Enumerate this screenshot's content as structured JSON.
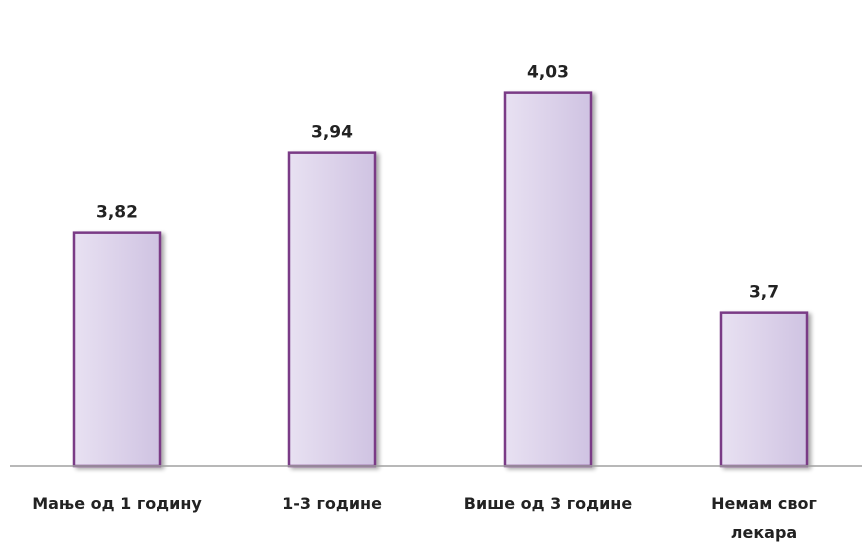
{
  "chart_data": {
    "type": "bar",
    "categories": [
      [
        "Мање од 1 годину"
      ],
      [
        "1-3 године"
      ],
      [
        "Више од 3 године"
      ],
      [
        "Немам свог",
        "лекара"
      ]
    ],
    "values": [
      3.82,
      3.94,
      4.03,
      3.7
    ],
    "value_labels": [
      "3,82",
      "3,94",
      "4,03",
      "3,7"
    ],
    "ylim": [
      3.47,
      4.1
    ],
    "title": "",
    "xlabel": "",
    "ylabel": "",
    "grid": false,
    "legend": "none",
    "colors": {
      "bar_fill_light": "#e4dcef",
      "bar_fill_mid": "#d6cbe6",
      "bar_edge": "#7a3b86",
      "axis": "#a0a0a0"
    }
  }
}
